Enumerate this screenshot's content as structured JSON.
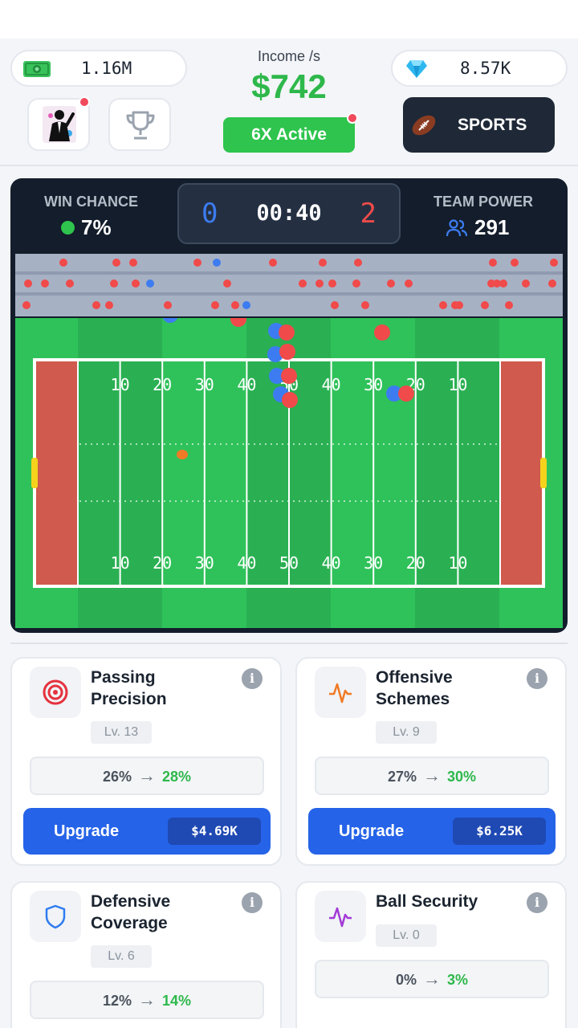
{
  "header": {
    "cash": "1.16M",
    "gems": "8.57K",
    "income_label": "Income /s",
    "income_value": "$742",
    "multiplier": "6X Active",
    "sports_label": "SPORTS"
  },
  "game": {
    "win_chance_label": "WIN CHANCE",
    "win_chance_value": "7%",
    "team_power_label": "TEAM POWER",
    "team_power_value": "291",
    "score_home": "0",
    "score_away": "2",
    "clock": "00:40",
    "yard_numbers": [
      "10",
      "20",
      "30",
      "40",
      "50",
      "40",
      "30",
      "20",
      "10"
    ]
  },
  "upgrades": [
    {
      "title_1": "Passing",
      "title_2": "Precision",
      "level": "Lv. 13",
      "from": "26%",
      "to": "28%",
      "button": "Upgrade",
      "price": "$4.69K",
      "icon": "target-icon"
    },
    {
      "title_1": "Offensive",
      "title_2": "Schemes",
      "level": "Lv. 9",
      "from": "27%",
      "to": "30%",
      "button": "Upgrade",
      "price": "$6.25K",
      "icon": "pulse-icon"
    },
    {
      "title_1": "Defensive",
      "title_2": "Coverage",
      "level": "Lv. 6",
      "from": "12%",
      "to": "14%",
      "icon": "shield-icon"
    },
    {
      "title_1": "Ball Security",
      "title_2": "",
      "level": "Lv. 0",
      "from": "0%",
      "to": "3%",
      "icon": "pulse-purple-icon"
    }
  ],
  "colors": {
    "income": "#2eb84b",
    "home_team": "#3d7cf0",
    "away_team": "#f04a4a",
    "upgrade_button": "#2563e8",
    "field": "#2fc25a"
  }
}
